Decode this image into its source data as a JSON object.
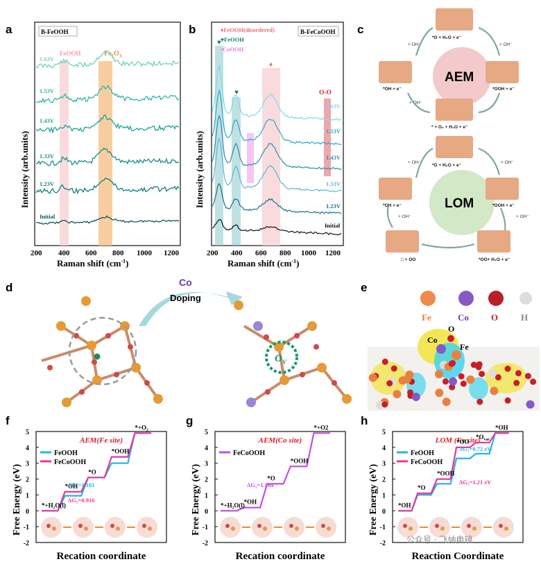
{
  "panels": {
    "a": {
      "letter": "a",
      "title": "B-FeOOH",
      "xlabel": "Raman shift (cm",
      "xlabel_sup": "-1",
      "xlabel_close": ")",
      "ylabel": "Intensity (arb.units)",
      "band_labels": [
        "FeOOH",
        "Fe",
        "2",
        "O",
        "3"
      ],
      "traces": [
        "1.63V",
        "1.53V",
        "1.43V",
        "1.33V",
        "1.23V",
        "Initial"
      ],
      "xticks": [
        "200",
        "400",
        "600",
        "800",
        "1000",
        "1200"
      ]
    },
    "b": {
      "letter": "b",
      "title": "B-FeCoOOH",
      "legend": [
        "♦FeOOH(disordered)",
        "♥FeOOH",
        "•CoOOH"
      ],
      "oo_label": "O-O",
      "xlabel": "Raman shift (cm",
      "xlabel_sup": "-1",
      "xlabel_close": ")",
      "ylabel": "Intensity (arb.units)",
      "traces": [
        "1.63V",
        "1.53V",
        "1.43V",
        "1.33V",
        "1.23V",
        "Initial"
      ],
      "xticks": [
        "200",
        "400",
        "600",
        "800",
        "1000",
        "1200"
      ],
      "markers": [
        "♥",
        "♥",
        "♦"
      ]
    },
    "c": {
      "letter": "c",
      "aem": "AEM",
      "lom": "LOM",
      "aem_steps": [
        "*O + H₂O + e⁻",
        "*OOH + e⁻",
        "* + O₂ + H₂O + e⁻",
        "*OH + e⁻"
      ],
      "lom_steps": [
        "*O + H₂O + e⁻",
        "*OOH + e⁻",
        "*OO+ H₂O + e⁻",
        "□ + OO",
        "*OH + e⁻"
      ],
      "oh": "+ OH⁻"
    },
    "d": {
      "letter": "d",
      "dopant": "Co",
      "arrow": "Doping",
      "vacancy": "O",
      "vacancy_sub": "V"
    },
    "e": {
      "letter": "e",
      "legend": [
        "Fe",
        "Co",
        "O",
        "H"
      ],
      "labels": [
        "O",
        "Co",
        "Fe"
      ]
    },
    "f": {
      "letter": "f",
      "title": "AEM(Fe site)",
      "legend": [
        "FeOOH",
        "FeCoOOH"
      ],
      "ylabel": "Free Energy (eV)",
      "xlabel": "Recation coordinate",
      "yticks": [
        "5",
        "4",
        "3",
        "2",
        "1",
        "0",
        "-1",
        "-2"
      ],
      "states": [
        "*+H₂O(l)",
        "*OH",
        "*O",
        "*OOH",
        "*+O₂"
      ],
      "dg": [
        "ΔG₂=1.181",
        "ΔG₂=0.916"
      ]
    },
    "g": {
      "letter": "g",
      "title": "AEM(Co site)",
      "legend": [
        "FeCoOOH"
      ],
      "ylabel": "Free Energy (eV)",
      "xlabel": "Recation coordinate",
      "yticks": [
        "5",
        "4",
        "3",
        "2",
        "1",
        "0",
        "-1",
        "-2"
      ],
      "states": [
        "*+H₂O(l)",
        "*OH",
        "*O",
        "*OOH",
        "*+O2"
      ],
      "dg": [
        "ΔG₂=1.564"
      ]
    },
    "h": {
      "letter": "h",
      "title": "LOM (Fe site)",
      "legend": [
        "FeOOH",
        "FeCoOOH"
      ],
      "ylabel": "Free Energy (eV)",
      "xlabel": "Reaction Coordinate",
      "yticks": [
        "5",
        "4",
        "3",
        "2",
        "1",
        "0",
        "-1",
        "-2"
      ],
      "states": [
        "*OH",
        "*O",
        "*OOH",
        "*OO",
        "*O",
        "*OH"
      ],
      "states_sub": "vac",
      "dg": [
        "ΔG₃=0.72 eV",
        "ΔG₃=1.21 eV"
      ]
    }
  },
  "watermark": "公众号 · 飞纳电镜",
  "chart_data": [
    {
      "type": "line",
      "panel": "f",
      "ylim": [
        -2,
        5
      ],
      "series": [
        {
          "name": "FeOOH",
          "values": [
            0,
            0.95,
            2.1,
            3.0,
            4.9
          ],
          "color": "#23b5e6"
        },
        {
          "name": "FeCoOOH",
          "values": [
            0,
            1.2,
            2.1,
            3.4,
            4.9
          ],
          "color": "#e6399b"
        }
      ]
    },
    {
      "type": "line",
      "panel": "g",
      "ylim": [
        -2,
        5
      ],
      "series": [
        {
          "name": "FeCoOOH",
          "values": [
            0,
            0.2,
            1.7,
            2.8,
            4.9
          ],
          "color": "#c24de0"
        }
      ]
    },
    {
      "type": "line",
      "panel": "h",
      "ylim": [
        -2,
        5
      ],
      "series": [
        {
          "name": "FeOOH",
          "values": [
            0,
            1.0,
            1.7,
            3.3,
            3.6,
            4.9
          ],
          "color": "#23b5e6"
        },
        {
          "name": "FeCoOOH",
          "values": [
            0,
            1.1,
            2.0,
            4.0,
            4.3,
            4.9
          ],
          "color": "#e6399b"
        }
      ]
    }
  ]
}
